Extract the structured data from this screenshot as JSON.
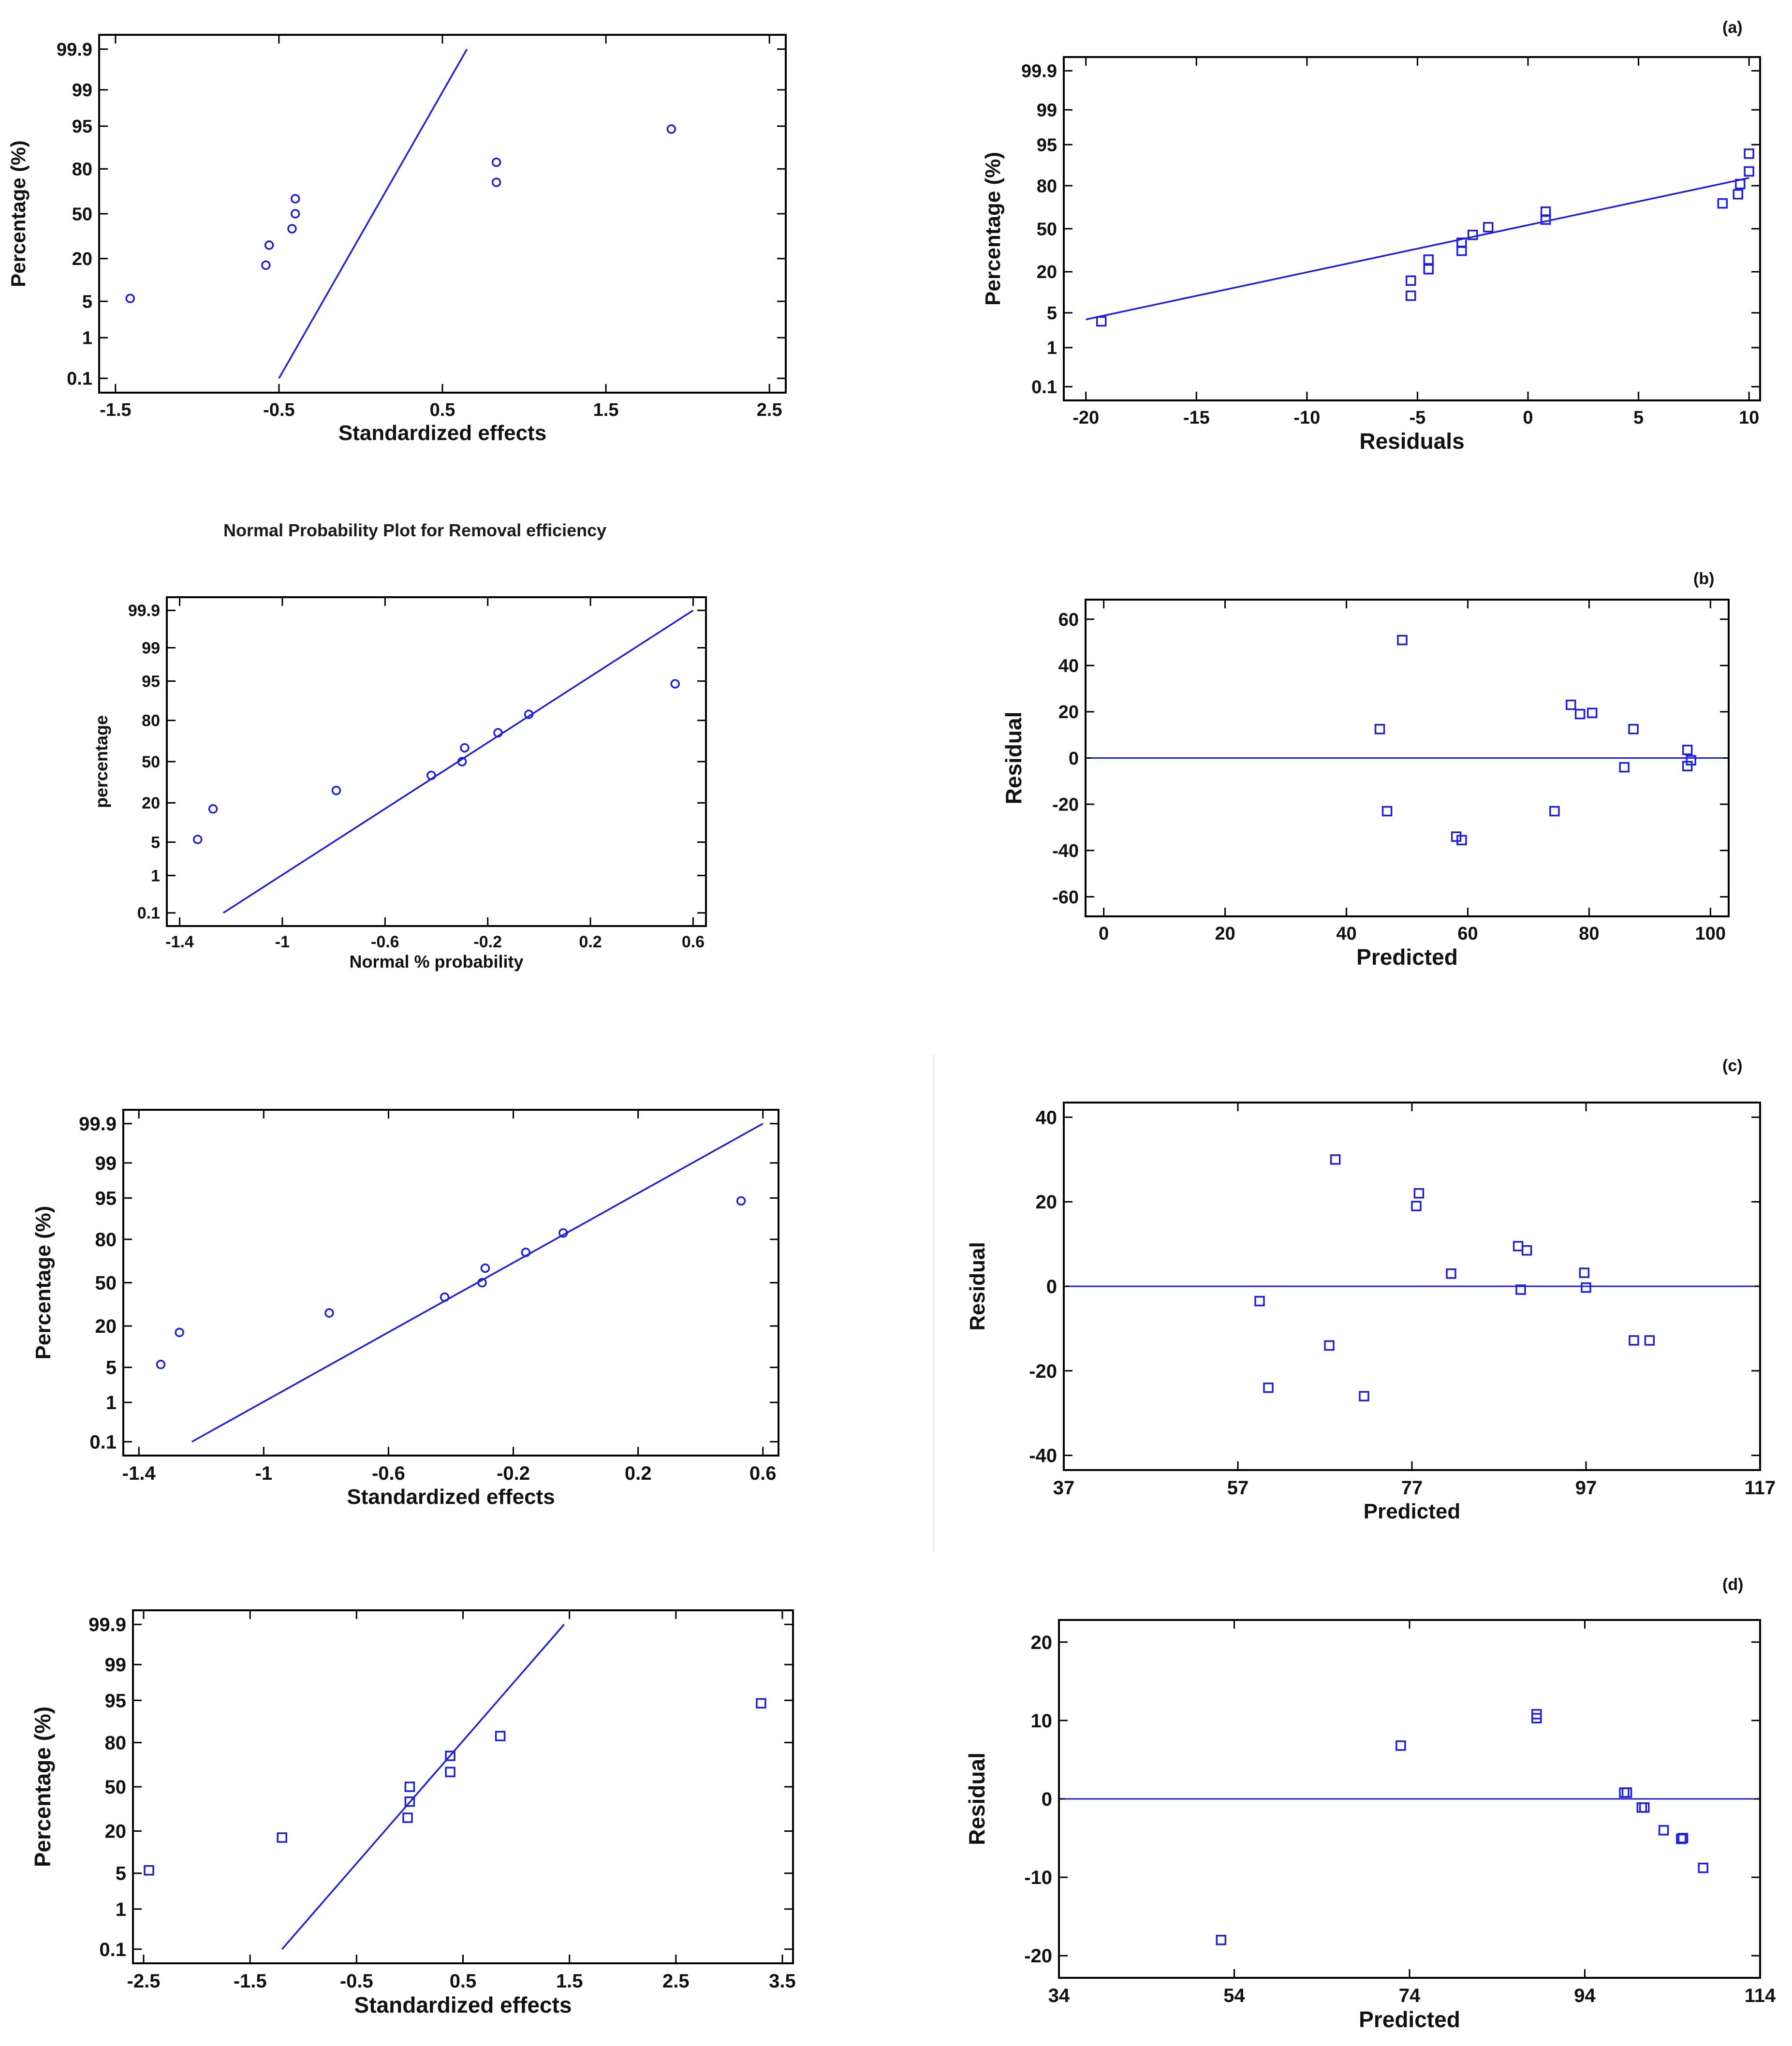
{
  "figure": {
    "middle_title": "Normal Probability Plot for Removal efficiency",
    "panel_labels": [
      "(a)",
      "(b)",
      "(c)",
      "(d)"
    ],
    "colors": {
      "marker": "#1f1fd6",
      "line": "#1f1fd6",
      "axis": "#000000"
    }
  },
  "chart_data": [
    {
      "id": "L1",
      "type": "scatter",
      "marker": "circle",
      "title": "",
      "xlabel": "Standardized effects",
      "ylabel": "Percentage (%)",
      "xlim": [
        -1.6,
        2.6
      ],
      "x_ticks": [
        -1.5,
        -0.5,
        0.5,
        1.5,
        2.5
      ],
      "x_tick_labels": [
        "-1.5",
        "-0.5",
        "0.5",
        "1.5",
        "2.5"
      ],
      "y_scale": "probability",
      "y_ticks": [
        0.1,
        1,
        5,
        20,
        50,
        80,
        95,
        99,
        99.9
      ],
      "y_tick_labels": [
        "0.1",
        "1",
        "5",
        "20",
        "50",
        "80",
        "95",
        "99",
        "99.9"
      ],
      "points": [
        [
          -1.41,
          5.6
        ],
        [
          -0.58,
          16.7
        ],
        [
          -0.56,
          27.8
        ],
        [
          -0.42,
          38.9
        ],
        [
          -0.4,
          50
        ],
        [
          -0.4,
          61.1
        ],
        [
          0.83,
          72.2
        ],
        [
          0.83,
          83.3
        ],
        [
          1.9,
          94.4
        ]
      ],
      "fit_line": [
        [
          -0.5,
          0.1
        ],
        [
          0.65,
          99.9
        ]
      ]
    },
    {
      "id": "R1",
      "type": "scatter",
      "marker": "square",
      "panel_label": "(a)",
      "title": "",
      "xlabel": "Residuals",
      "ylabel": "Percentage (%)",
      "xlim": [
        -21,
        10.5
      ],
      "x_ticks": [
        -20,
        -15,
        -10,
        -5,
        0,
        5,
        10
      ],
      "x_tick_labels": [
        "-20",
        "-15",
        "-10",
        "-5",
        "0",
        "5",
        "10"
      ],
      "y_scale": "probability",
      "y_ticks": [
        0.1,
        1,
        5,
        20,
        50,
        80,
        95,
        99,
        99.9
      ],
      "y_tick_labels": [
        "0.1",
        "1",
        "5",
        "20",
        "50",
        "80",
        "95",
        "99",
        "99.9"
      ],
      "points": [
        [
          -19.3,
          3.5
        ],
        [
          -5.3,
          9.5
        ],
        [
          -5.3,
          15.5
        ],
        [
          -4.5,
          21.4
        ],
        [
          -4.5,
          27.3
        ],
        [
          -3.0,
          33.3
        ],
        [
          -3.0,
          39.2
        ],
        [
          -2.5,
          45.2
        ],
        [
          -1.8,
          51.2
        ],
        [
          0.8,
          57.1
        ],
        [
          0.8,
          63.1
        ],
        [
          8.8,
          69.0
        ],
        [
          9.5,
          75.0
        ],
        [
          9.6,
          80.9
        ],
        [
          10.0,
          86.9
        ],
        [
          10.0,
          92.9
        ]
      ],
      "fit_line": [
        [
          -20,
          3.8
        ],
        [
          10,
          84
        ]
      ]
    },
    {
      "id": "L2",
      "type": "scatter",
      "marker": "circle",
      "title": "",
      "xlabel": "Normal % probability",
      "ylabel": "percentage",
      "xlim": [
        -1.45,
        0.65
      ],
      "x_ticks": [
        -1.4,
        -1,
        -0.6,
        -0.2,
        0.2,
        0.6
      ],
      "x_tick_labels": [
        "-1.4",
        "-1",
        "-0.6",
        "-0.2",
        "0.2",
        "0.6"
      ],
      "y_scale": "probability",
      "y_ticks": [
        0.1,
        1,
        5,
        20,
        50,
        80,
        95,
        99,
        99.9
      ],
      "y_tick_labels": [
        "0.1",
        "1",
        "5",
        "20",
        "50",
        "80",
        "95",
        "99",
        "99.9"
      ],
      "points": [
        [
          -1.33,
          5.6
        ],
        [
          -1.27,
          16.7
        ],
        [
          -0.79,
          27.8
        ],
        [
          -0.42,
          38.9
        ],
        [
          -0.3,
          50
        ],
        [
          -0.29,
          61.1
        ],
        [
          -0.16,
          72.2
        ],
        [
          -0.04,
          83.3
        ],
        [
          0.53,
          94.4
        ]
      ],
      "fit_line": [
        [
          -1.23,
          0.1
        ],
        [
          0.6,
          99.9
        ]
      ]
    },
    {
      "id": "R2",
      "type": "scatter",
      "marker": "square",
      "panel_label": "(b)",
      "title": "",
      "xlabel": "Predicted",
      "ylabel": "Residual",
      "xlim": [
        -3,
        103
      ],
      "ylim": [
        -63,
        63
      ],
      "x_ticks": [
        0,
        20,
        40,
        60,
        80,
        100
      ],
      "x_tick_labels": [
        "0",
        "20",
        "40",
        "60",
        "80",
        "100"
      ],
      "y_ticks": [
        -60,
        -40,
        -20,
        0,
        20,
        40,
        60
      ],
      "y_tick_labels": [
        "-60",
        "-40",
        "-20",
        "0",
        "20",
        "40",
        "60"
      ],
      "points": [
        [
          45.5,
          12.5
        ],
        [
          46.7,
          -23.0
        ],
        [
          49.2,
          51.0
        ],
        [
          58.1,
          -34.0
        ],
        [
          59.0,
          -35.5
        ],
        [
          74.3,
          -23.0
        ],
        [
          77.0,
          23.0
        ],
        [
          78.5,
          19.0
        ],
        [
          80.5,
          19.5
        ],
        [
          85.8,
          -4.0
        ],
        [
          87.3,
          12.5
        ],
        [
          96.2,
          3.5
        ],
        [
          96.2,
          -3.5
        ],
        [
          96.8,
          -1.0
        ]
      ],
      "ref_line_y": 0
    },
    {
      "id": "L3",
      "type": "scatter",
      "marker": "circle",
      "title": "",
      "xlabel": "Standardized effects",
      "ylabel": "Percentage (%)",
      "xlim": [
        -1.45,
        0.65
      ],
      "x_ticks": [
        -1.4,
        -1,
        -0.6,
        -0.2,
        0.2,
        0.6
      ],
      "x_tick_labels": [
        "-1.4",
        "-1",
        "-0.6",
        "-0.2",
        "0.2",
        "0.6"
      ],
      "y_scale": "probability",
      "y_ticks": [
        0.1,
        1,
        5,
        20,
        50,
        80,
        95,
        99,
        99.9
      ],
      "y_tick_labels": [
        "0.1",
        "1",
        "5",
        "20",
        "50",
        "80",
        "95",
        "99",
        "99.9"
      ],
      "points": [
        [
          -1.33,
          5.6
        ],
        [
          -1.27,
          16.7
        ],
        [
          -0.79,
          27.8
        ],
        [
          -0.42,
          38.9
        ],
        [
          -0.3,
          50
        ],
        [
          -0.29,
          61.1
        ],
        [
          -0.16,
          72.2
        ],
        [
          -0.04,
          83.3
        ],
        [
          0.53,
          94.4
        ]
      ],
      "fit_line": [
        [
          -1.23,
          0.1
        ],
        [
          0.6,
          99.9
        ]
      ]
    },
    {
      "id": "R3",
      "type": "scatter",
      "marker": "square",
      "panel_label": "(c)",
      "title": "",
      "xlabel": "Predicted",
      "ylabel": "Residual",
      "xlim": [
        37,
        117
      ],
      "ylim": [
        -40,
        40
      ],
      "x_ticks": [
        37,
        57,
        77,
        97,
        117
      ],
      "x_tick_labels": [
        "37",
        "57",
        "77",
        "97",
        "117"
      ],
      "y_ticks": [
        -40,
        -20,
        0,
        20,
        40
      ],
      "y_tick_labels": [
        "-40",
        "-20",
        "0",
        "20",
        "40"
      ],
      "points": [
        [
          59.5,
          -3.5
        ],
        [
          60.5,
          -24.0
        ],
        [
          67.5,
          -14.0
        ],
        [
          68.2,
          30.0
        ],
        [
          71.5,
          -26.0
        ],
        [
          77.5,
          19.0
        ],
        [
          77.8,
          22.0
        ],
        [
          81.5,
          3.0
        ],
        [
          89.2,
          9.5
        ],
        [
          89.5,
          -0.8
        ],
        [
          90.2,
          8.5
        ],
        [
          96.8,
          3.2
        ],
        [
          97.0,
          -0.3
        ],
        [
          102.5,
          -12.8
        ],
        [
          104.3,
          -12.8
        ]
      ],
      "ref_line_y": 0
    },
    {
      "id": "L4",
      "type": "scatter",
      "marker": "square",
      "title": "",
      "xlabel": "Standardized effects",
      "ylabel": "Percentage (%)",
      "xlim": [
        -2.6,
        3.6
      ],
      "x_ticks": [
        -2.5,
        -1.5,
        -0.5,
        0.5,
        1.5,
        2.5,
        3.5
      ],
      "x_tick_labels": [
        "-2.5",
        "-1.5",
        "-0.5",
        "0.5",
        "1.5",
        "2.5",
        "3.5"
      ],
      "y_scale": "probability",
      "y_ticks": [
        0.1,
        1,
        5,
        20,
        50,
        80,
        95,
        99,
        99.9
      ],
      "y_tick_labels": [
        "0.1",
        "1",
        "5",
        "20",
        "50",
        "80",
        "95",
        "99",
        "99.9"
      ],
      "points": [
        [
          -2.45,
          5.6
        ],
        [
          -1.2,
          16.7
        ],
        [
          -0.02,
          27.8
        ],
        [
          0.0,
          38.9
        ],
        [
          0.0,
          50
        ],
        [
          0.38,
          61.1
        ],
        [
          0.38,
          72.2
        ],
        [
          0.85,
          83.3
        ],
        [
          3.3,
          94.4
        ]
      ],
      "fit_line": [
        [
          -1.2,
          0.1
        ],
        [
          1.45,
          99.9
        ]
      ]
    },
    {
      "id": "R4",
      "type": "scatter",
      "marker": "square",
      "panel_label": "(d)",
      "title": "",
      "xlabel": "Predicted",
      "ylabel": "Residual",
      "xlim": [
        34,
        114
      ],
      "ylim": [
        -21,
        21
      ],
      "x_ticks": [
        34,
        54,
        74,
        94,
        114
      ],
      "x_tick_labels": [
        "34",
        "54",
        "74",
        "94",
        "114"
      ],
      "y_ticks": [
        -20,
        -10,
        0,
        10,
        20
      ],
      "y_tick_labels": [
        "-20",
        "-10",
        "0",
        "10",
        "20"
      ],
      "points": [
        [
          52.5,
          -18.0
        ],
        [
          73.0,
          6.8
        ],
        [
          88.5,
          10.8
        ],
        [
          88.5,
          10.3
        ],
        [
          98.5,
          0.8
        ],
        [
          98.8,
          0.8
        ],
        [
          100.5,
          -1.1
        ],
        [
          100.8,
          -1.1
        ],
        [
          103.0,
          -4.0
        ],
        [
          105.0,
          -5.1
        ],
        [
          105.2,
          -5.0
        ],
        [
          107.5,
          -8.8
        ]
      ],
      "ref_line_y": 0
    }
  ]
}
